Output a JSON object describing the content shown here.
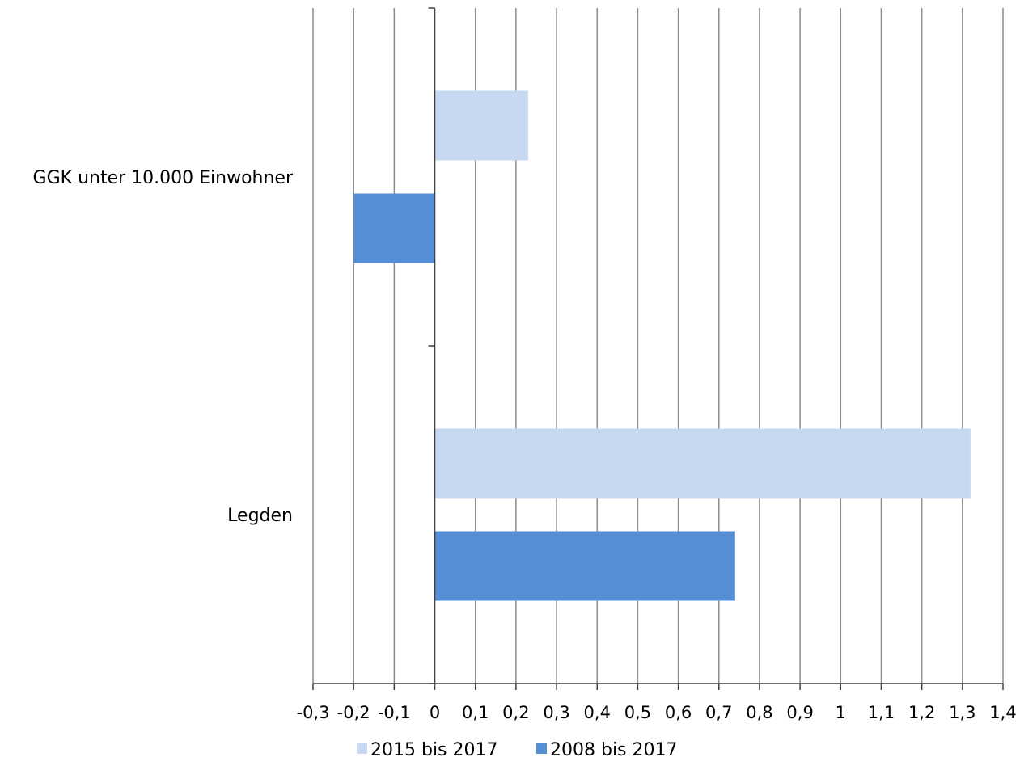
{
  "chart_data": {
    "type": "bar",
    "orientation": "horizontal",
    "categories": [
      "GGK unter 10.000 Einwohner",
      "Legden"
    ],
    "series": [
      {
        "name": "2015 bis 2017",
        "color": "#c6d9f1",
        "values": [
          0.23,
          1.32
        ]
      },
      {
        "name": "2008 bis 2017",
        "color": "#558ed5",
        "values": [
          -0.2,
          0.74
        ]
      }
    ],
    "xlim": [
      -0.3,
      1.4
    ],
    "xticks": [
      "-0,3",
      "-0,2",
      "-0,1",
      "0",
      "0,1",
      "0,2",
      "0,3",
      "0,4",
      "0,5",
      "0,6",
      "0,7",
      "0,8",
      "0,9",
      "1",
      "1,1",
      "1,2",
      "1,3",
      "1,4"
    ],
    "grid": true,
    "legend_position": "bottom"
  }
}
